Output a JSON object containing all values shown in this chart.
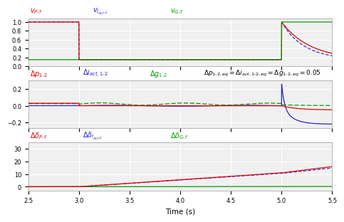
{
  "t_start": 2.5,
  "t_end": 5.5,
  "t_step1": 3.0,
  "t_step2": 5.0,
  "colors": {
    "red": "#e80000",
    "blue": "#2222cc",
    "green": "#009900"
  },
  "subplot1": {
    "ylim": [
      0.0,
      1.08
    ],
    "yticks": [
      0,
      0.2,
      0.4,
      0.6,
      0.8,
      1.0
    ]
  },
  "subplot2": {
    "ylim": [
      -0.27,
      0.3
    ],
    "yticks": [
      -0.2,
      0,
      0.2
    ]
  },
  "subplot3": {
    "ylim": [
      -3,
      35
    ],
    "yticks": [
      0,
      10,
      20,
      30
    ]
  },
  "xlabel": "Time (s)",
  "xticks": [
    2.5,
    3.0,
    3.5,
    4.0,
    4.5,
    5.0,
    5.5
  ],
  "background_color": "#f0f0f0",
  "grid_color": "#ffffff"
}
